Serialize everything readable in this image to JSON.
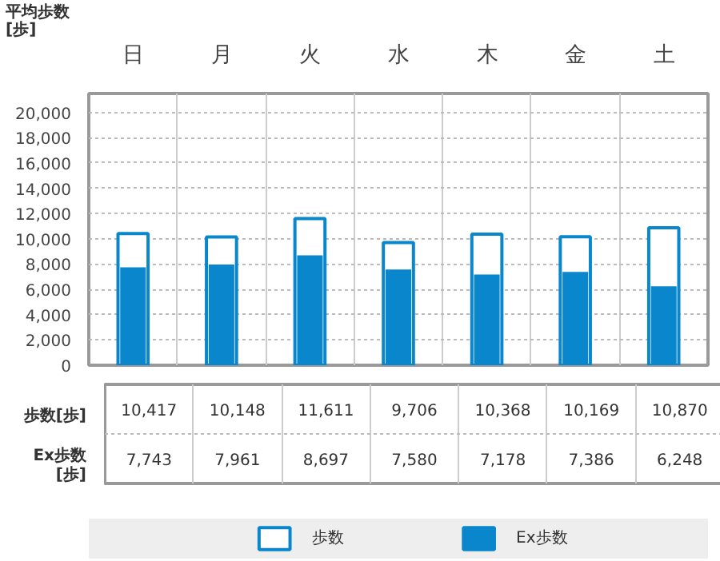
{
  "chart_data": {
    "type": "bar",
    "ylabel": "平均歩数\n[歩]",
    "categories": [
      "日",
      "月",
      "火",
      "水",
      "木",
      "金",
      "土"
    ],
    "series": [
      {
        "name": "歩数",
        "color": "#ffffff",
        "values": [
          10417,
          10148,
          11611,
          9706,
          10368,
          10169,
          10870
        ],
        "value_labels": [
          "10,417",
          "10,148",
          "11,611",
          "9,706",
          "10,368",
          "10,169",
          "10,870"
        ]
      },
      {
        "name": "Ex歩数",
        "color": "#0a86cc",
        "values": [
          7743,
          7961,
          8697,
          7580,
          7178,
          7386,
          6248
        ],
        "value_labels": [
          "7,743",
          "7,961",
          "8,697",
          "7,580",
          "7,178",
          "7,386",
          "6,248"
        ]
      }
    ],
    "ylim": [
      0,
      21500
    ],
    "yticks": [
      {
        "value": 0,
        "label": "0"
      },
      {
        "value": 2000,
        "label": "2,000"
      },
      {
        "value": 4000,
        "label": "4,000"
      },
      {
        "value": 6000,
        "label": "6,000"
      },
      {
        "value": 8000,
        "label": "8,000"
      },
      {
        "value": 10000,
        "label": "10,000"
      },
      {
        "value": 12000,
        "label": "12,000"
      },
      {
        "value": 14000,
        "label": "14,000"
      },
      {
        "value": 16000,
        "label": "16,000"
      },
      {
        "value": 18000,
        "label": "18,000"
      },
      {
        "value": 20000,
        "label": "20,000"
      }
    ],
    "grid": "y",
    "annotations": [
      "歩数[歩]",
      "Ex歩数\n[歩]"
    ],
    "legend": "bottom"
  }
}
